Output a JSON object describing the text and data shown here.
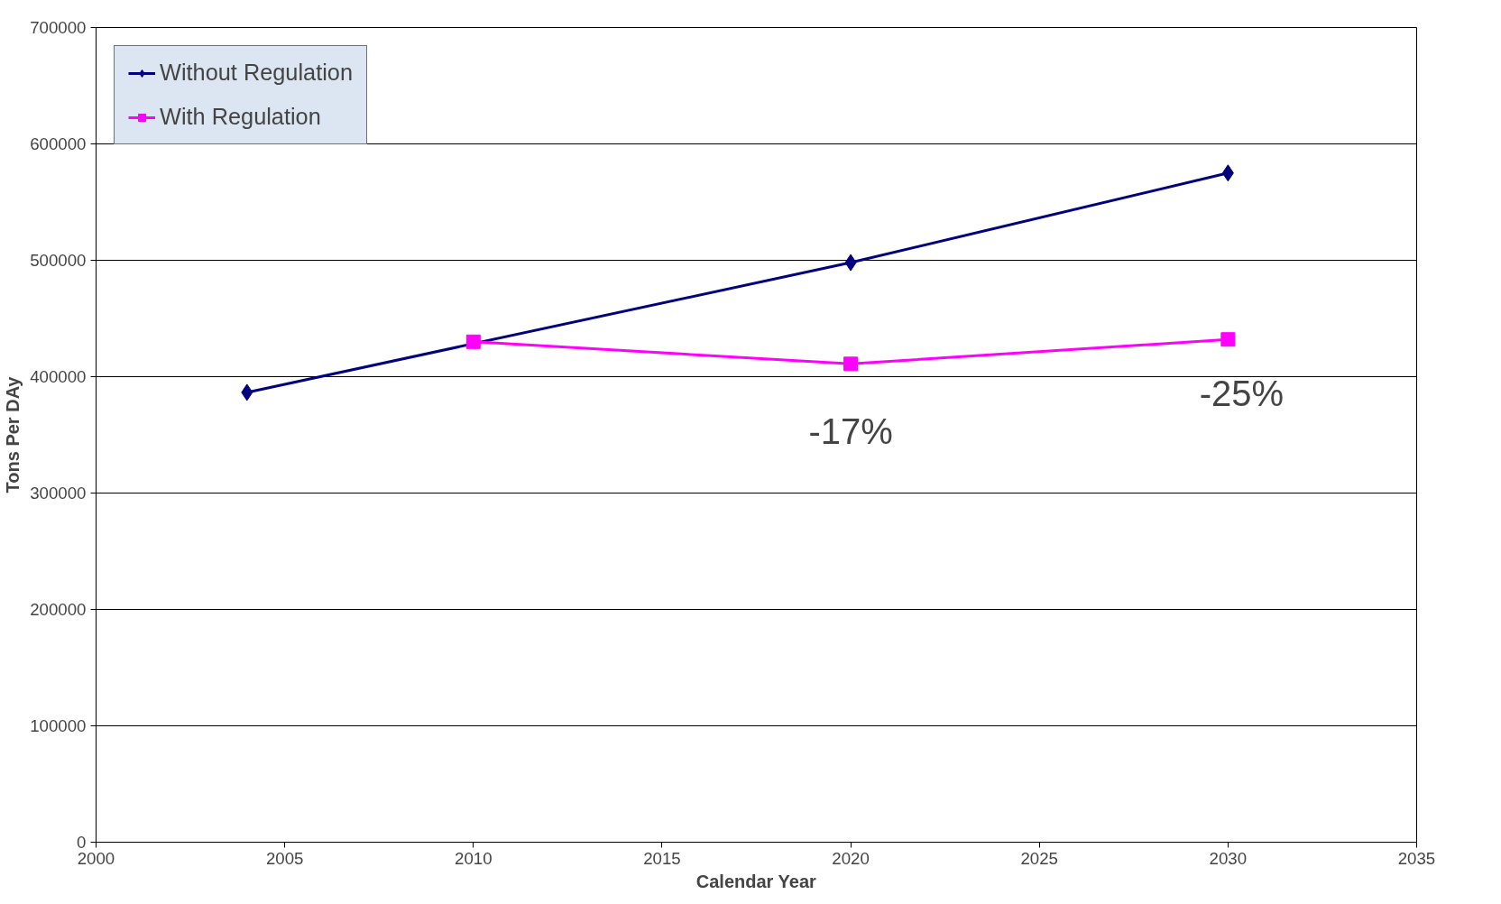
{
  "chart_data": {
    "type": "line",
    "xlabel": "Calendar Year",
    "ylabel": "Tons Per DAy",
    "xlim": [
      2000,
      2035
    ],
    "xticks": [
      2000,
      2005,
      2010,
      2015,
      2020,
      2025,
      2030,
      2035
    ],
    "ylim": [
      0,
      700000
    ],
    "yticks": [
      0,
      100000,
      200000,
      300000,
      400000,
      500000,
      600000,
      700000
    ],
    "grid": "y",
    "legend": "top left",
    "line_style": "solid",
    "series": [
      {
        "name": "Without Regulation",
        "color": "#000080",
        "marker": "diamond",
        "x": [
          2004,
          2020,
          2030
        ],
        "values": [
          386500,
          498000,
          575000
        ]
      },
      {
        "name": "With Regulation",
        "color": "#ff00ff",
        "marker": "square",
        "x": [
          2010,
          2020,
          2030
        ],
        "values": [
          430000,
          411000,
          432000
        ]
      }
    ],
    "annotations": [
      "-17%",
      "-25%"
    ]
  }
}
